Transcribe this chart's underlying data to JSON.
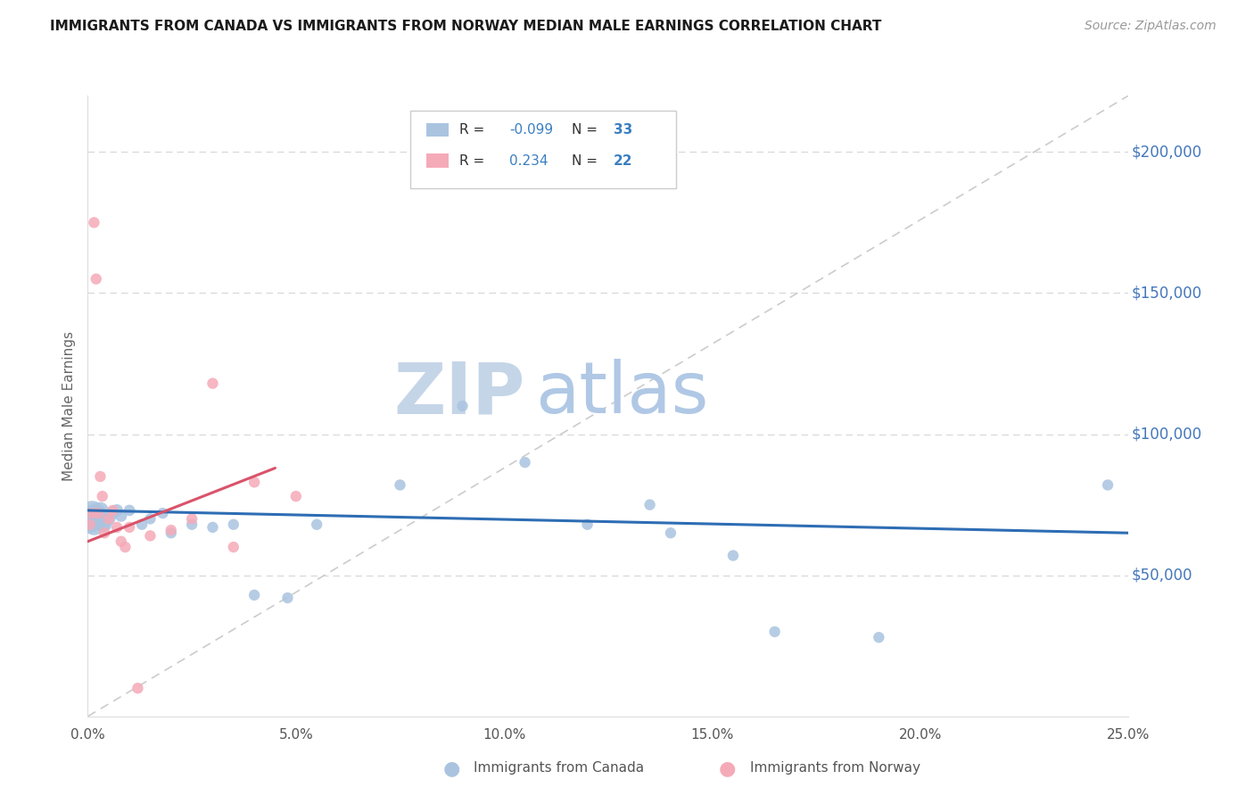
{
  "title": "IMMIGRANTS FROM CANADA VS IMMIGRANTS FROM NORWAY MEDIAN MALE EARNINGS CORRELATION CHART",
  "source": "Source: ZipAtlas.com",
  "ylabel": "Median Male Earnings",
  "xlim": [
    0,
    25.0
  ],
  "ylim": [
    0,
    220000
  ],
  "canada_R": -0.099,
  "canada_N": 33,
  "norway_R": 0.234,
  "norway_N": 22,
  "canada_color": "#aac4e0",
  "norway_color": "#f5aab8",
  "canada_trend_color": "#2e6db4",
  "norway_trend_color": "#d9536a",
  "legend_color": "#3a7fc1",
  "right_axis_color": "#4477bb",
  "watermark_zip": "ZIP",
  "watermark_atlas": "atlas",
  "watermark_color_zip": "#d0dff0",
  "watermark_color_atlas": "#b8cce8",
  "grid_color": "#d8d8d8",
  "diag_color": "#cccccc",
  "canada_x": [
    0.05,
    0.1,
    0.15,
    0.2,
    0.25,
    0.3,
    0.35,
    0.4,
    0.5,
    0.6,
    0.7,
    0.8,
    1.0,
    1.3,
    1.5,
    1.8,
    2.0,
    2.5,
    3.0,
    3.5,
    4.0,
    4.8,
    5.5,
    7.5,
    9.0,
    10.5,
    12.0,
    13.5,
    14.0,
    15.5,
    16.5,
    19.0,
    24.5
  ],
  "canada_y": [
    70000,
    72000,
    68000,
    72000,
    70000,
    73000,
    68000,
    68000,
    70000,
    72000,
    73000,
    71000,
    73000,
    68000,
    70000,
    72000,
    65000,
    68000,
    67000,
    68000,
    43000,
    42000,
    68000,
    82000,
    110000,
    90000,
    68000,
    75000,
    65000,
    57000,
    30000,
    28000,
    82000
  ],
  "canada_sizes": [
    500,
    400,
    300,
    250,
    200,
    180,
    160,
    140,
    120,
    110,
    100,
    90,
    85,
    80,
    80,
    80,
    80,
    80,
    80,
    80,
    80,
    80,
    80,
    80,
    80,
    80,
    80,
    80,
    80,
    80,
    80,
    80,
    80
  ],
  "norway_x": [
    0.05,
    0.1,
    0.15,
    0.2,
    0.25,
    0.3,
    0.35,
    0.4,
    0.5,
    0.6,
    0.7,
    0.8,
    0.9,
    1.0,
    1.5,
    2.0,
    2.5,
    3.0,
    3.5,
    4.0,
    5.0,
    1.2
  ],
  "norway_y": [
    68000,
    72000,
    175000,
    155000,
    72000,
    85000,
    78000,
    65000,
    70000,
    73000,
    67000,
    62000,
    60000,
    67000,
    64000,
    66000,
    70000,
    118000,
    60000,
    83000,
    78000,
    10000
  ],
  "norway_sizes": [
    80,
    80,
    80,
    80,
    80,
    80,
    80,
    80,
    80,
    80,
    80,
    80,
    80,
    80,
    80,
    80,
    80,
    80,
    80,
    80,
    80,
    80
  ]
}
